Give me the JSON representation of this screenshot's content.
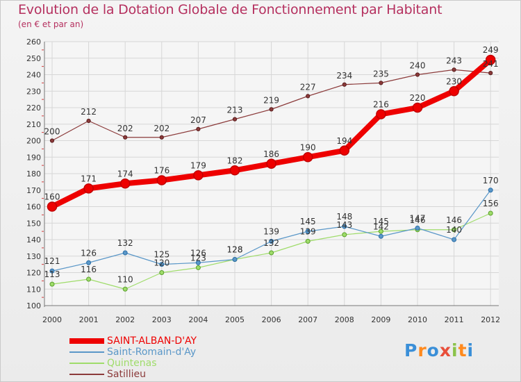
{
  "chart_data": {
    "type": "line",
    "title": "Evolution de la Dotation Globale de Fonctionnement par Habitant",
    "subtitle": "(en € et par an)",
    "categories": [
      "2000",
      "2001",
      "2002",
      "2003",
      "2004",
      "2005",
      "2006",
      "2007",
      "2008",
      "2009",
      "2010",
      "2011",
      "2012"
    ],
    "ylim": [
      100,
      260
    ],
    "yticks": [
      100,
      110,
      120,
      130,
      140,
      150,
      160,
      170,
      180,
      190,
      200,
      210,
      220,
      230,
      240,
      250,
      260
    ],
    "grid": true,
    "series": [
      {
        "name": "SAINT-ALBAN-D'AY",
        "color": "#ee0000",
        "values": [
          160,
          171,
          174,
          176,
          179,
          182,
          186,
          190,
          194,
          216,
          220,
          230,
          249
        ]
      },
      {
        "name": "Saint-Romain-d'Ay",
        "color": "#5a97c8",
        "values": [
          121,
          126,
          132,
          125,
          126,
          128,
          139,
          145,
          148,
          142,
          147,
          140,
          170
        ]
      },
      {
        "name": "Quintenas",
        "color": "#9fdc6a",
        "values": [
          113,
          116,
          110,
          120,
          123,
          128,
          132,
          139,
          143,
          145,
          146,
          146,
          156
        ]
      },
      {
        "name": "Satillieu",
        "color": "#8b3a3a",
        "values": [
          200,
          212,
          202,
          202,
          207,
          213,
          219,
          227,
          234,
          235,
          240,
          243,
          241
        ]
      }
    ]
  },
  "logo": {
    "letters": [
      "P",
      "r",
      "o",
      "x",
      "i",
      "t",
      "i"
    ],
    "colors": [
      "#3a8fd8",
      "#ff8a1e",
      "#3a8fd8",
      "#e84e3a",
      "#8bc34a",
      "#ff8a1e",
      "#3a8fd8"
    ]
  }
}
